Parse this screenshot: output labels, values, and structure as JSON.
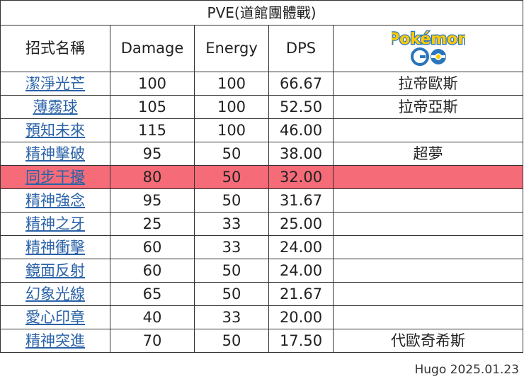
{
  "title": "PVE(道館團體戰)",
  "headers": {
    "move_name": "招式名稱",
    "damage": "Damage",
    "energy": "Energy",
    "dps": "DPS",
    "logo_text": "Pokémon GO"
  },
  "rows": [
    {
      "move": "潔淨光芒",
      "damage": "100",
      "energy": "100",
      "dps": "66.67",
      "pokemon": "拉帝歐斯"
    },
    {
      "move": "薄霧球",
      "damage": "105",
      "energy": "100",
      "dps": "52.50",
      "pokemon": "拉帝亞斯"
    },
    {
      "move": "預知未來",
      "damage": "115",
      "energy": "100",
      "dps": "46.00",
      "pokemon": ""
    },
    {
      "move": "精神擊破",
      "damage": "95",
      "energy": "50",
      "dps": "38.00",
      "pokemon": "超夢"
    },
    {
      "move": "同步干擾",
      "damage": "80",
      "energy": "50",
      "dps": "32.00",
      "pokemon": "",
      "highlight": true
    },
    {
      "move": "精神強念",
      "damage": "95",
      "energy": "50",
      "dps": "31.67",
      "pokemon": ""
    },
    {
      "move": "精神之牙",
      "damage": "25",
      "energy": "33",
      "dps": "25.00",
      "pokemon": ""
    },
    {
      "move": "精神衝擊",
      "damage": "60",
      "energy": "33",
      "dps": "24.00",
      "pokemon": ""
    },
    {
      "move": "鏡面反射",
      "damage": "60",
      "energy": "50",
      "dps": "24.00",
      "pokemon": ""
    },
    {
      "move": "幻象光線",
      "damage": "65",
      "energy": "50",
      "dps": "21.67",
      "pokemon": ""
    },
    {
      "move": "愛心印章",
      "damage": "40",
      "energy": "33",
      "dps": "20.00",
      "pokemon": ""
    },
    {
      "move": "精神突進",
      "damage": "70",
      "energy": "50",
      "dps": "17.50",
      "pokemon": "代歐奇希斯"
    }
  ],
  "footer": "Hugo 2025.01.23",
  "colors": {
    "highlight": "#f56b78",
    "link": "#2a62a8",
    "logo_yellow": "#ffcb05",
    "logo_blue": "#2a75bb"
  }
}
